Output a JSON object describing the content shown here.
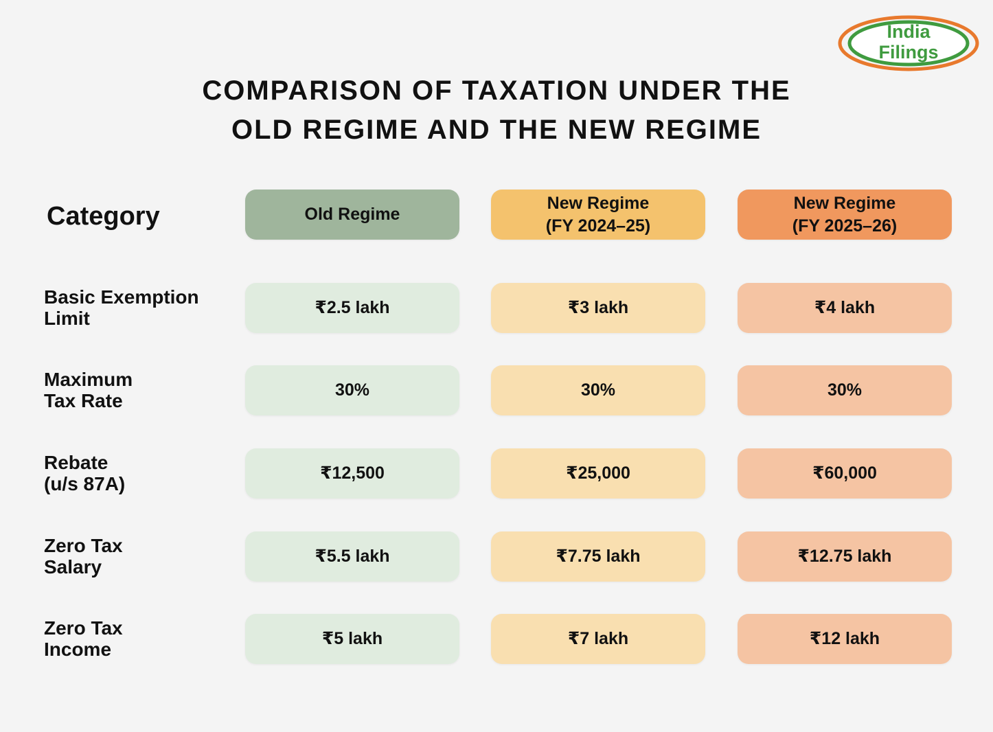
{
  "logo": {
    "line1": "India",
    "line2": "Filings"
  },
  "title": [
    "COMPARISON OF TAXATION UNDER THE",
    "OLD REGIME AND THE NEW REGIME"
  ],
  "table": {
    "header": [
      [
        "Category"
      ],
      [
        "Old Regime"
      ],
      [
        "New Regime",
        "(FY 2024–25)"
      ],
      [
        "New Regime",
        "(FY 2025–26)"
      ]
    ],
    "rows": [
      [
        [
          "Basic Exemption",
          "Limit"
        ],
        "₹2.5 lakh",
        "₹3 lakh",
        "₹4 lakh"
      ],
      [
        [
          "Maximum",
          "Tax Rate"
        ],
        "30%",
        "30%",
        "30%"
      ],
      [
        [
          "Rebate",
          "(u/s 87A)"
        ],
        "₹12,500",
        "₹25,000",
        "₹60,000"
      ],
      [
        [
          "Zero Tax",
          "Salary"
        ],
        "₹5.5 lakh",
        "₹7.75 lakh",
        "₹12.75 lakh"
      ],
      [
        [
          "Zero Tax",
          "Income"
        ],
        "₹5 lakh",
        "₹7 lakh",
        "₹12 lakh"
      ]
    ]
  }
}
